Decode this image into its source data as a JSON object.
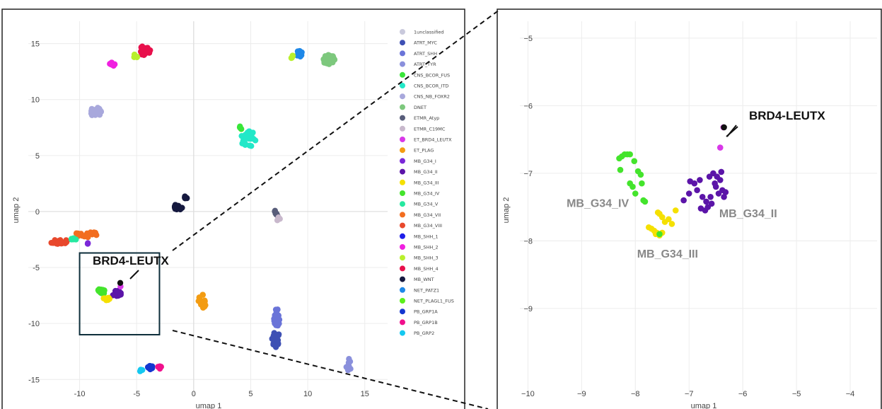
{
  "chart_data": [
    {
      "type": "scatter",
      "panel": "overview",
      "xlabel": "umap 1",
      "ylabel": "umap 2",
      "xlim": [
        -14.5,
        17
      ],
      "ylim": [
        -16.5,
        17
      ],
      "xticks": [
        -10,
        -5,
        0,
        5,
        10,
        15
      ],
      "yticks": [
        -15,
        -10,
        -5,
        0,
        5,
        10,
        15
      ],
      "grid": true,
      "legend_position": "right",
      "callout": "BRD4-LEUTX",
      "zoom_box": {
        "x": [
          -10,
          -3
        ],
        "y": [
          -11,
          -3.7
        ]
      },
      "legend": [
        {
          "label": "1unclassified",
          "color": "#c9c9dc"
        },
        {
          "label": "ATRT_MYC",
          "color": "#3e50b4"
        },
        {
          "label": "ATRT_SHH",
          "color": "#6a74d8"
        },
        {
          "label": "ATRT_TYR",
          "color": "#8a90dc"
        },
        {
          "label": "CNS_BCOR_FUS",
          "color": "#39e639"
        },
        {
          "label": "CNS_BCOR_ITD",
          "color": "#22e8c8"
        },
        {
          "label": "CNS_NB_FOXR2",
          "color": "#a8a8dc"
        },
        {
          "label": "DNET",
          "color": "#7dc87d"
        },
        {
          "label": "ETMR_Atyp",
          "color": "#585d7a"
        },
        {
          "label": "ETMR_C19MC",
          "color": "#c8b8cc"
        },
        {
          "label": "ET_BRD4_LEUTX",
          "color": "#d838e8"
        },
        {
          "label": "ET_PLAG",
          "color": "#f39c12"
        },
        {
          "label": "MB_G34_I",
          "color": "#7a28d8"
        },
        {
          "label": "MB_G34_II",
          "color": "#5b14a8"
        },
        {
          "label": "MB_G34_III",
          "color": "#f5e000"
        },
        {
          "label": "MB_G34_IV",
          "color": "#44e42c"
        },
        {
          "label": "MB_G34_V",
          "color": "#26e8a0"
        },
        {
          "label": "MB_G34_VII",
          "color": "#f26d1f"
        },
        {
          "label": "MB_G34_VIII",
          "color": "#e8482c"
        },
        {
          "label": "MB_SHH_1",
          "color": "#1e1ee8"
        },
        {
          "label": "MB_SHH_2",
          "color": "#f020e0"
        },
        {
          "label": "MB_SHH_3",
          "color": "#b8f02c"
        },
        {
          "label": "MB_SHH_4",
          "color": "#e8104c"
        },
        {
          "label": "MB_WNT",
          "color": "#15193f"
        },
        {
          "label": "NET_PATZ1",
          "color": "#1e88e8"
        },
        {
          "label": "NET_PLAGL1_FUS",
          "color": "#5cf01c"
        },
        {
          "label": "PB_GRP1A",
          "color": "#1436d0"
        },
        {
          "label": "PB_GRP1B",
          "color": "#f0108c"
        },
        {
          "label": "PB_GRP2",
          "color": "#14c8f0"
        }
      ],
      "clusters": [
        {
          "color": "#e8104c",
          "x": -4.3,
          "y": 14.4,
          "rx": 0.5,
          "ry": 0.45,
          "n": 30
        },
        {
          "color": "#b8f02c",
          "x": -5.1,
          "y": 13.9,
          "rx": 0.25,
          "ry": 0.2,
          "n": 5
        },
        {
          "color": "#f020e0",
          "x": -7.1,
          "y": 13.2,
          "rx": 0.3,
          "ry": 0.2,
          "n": 6
        },
        {
          "color": "#a8a8dc",
          "x": -8.6,
          "y": 8.9,
          "rx": 0.5,
          "ry": 0.4,
          "n": 24
        },
        {
          "color": "#7dc87d",
          "x": 11.8,
          "y": 13.6,
          "rx": 0.55,
          "ry": 0.45,
          "n": 30
        },
        {
          "color": "#1e88e8",
          "x": 9.2,
          "y": 14.1,
          "rx": 0.35,
          "ry": 0.3,
          "n": 8
        },
        {
          "color": "#b8f02c",
          "x": 8.6,
          "y": 13.9,
          "rx": 0.25,
          "ry": 0.2,
          "n": 4
        },
        {
          "color": "#22e8c8",
          "x": 4.8,
          "y": 6.5,
          "rx": 0.7,
          "ry": 0.7,
          "n": 26
        },
        {
          "color": "#39e639",
          "x": 4.2,
          "y": 7.6,
          "rx": 0.2,
          "ry": 0.25,
          "n": 4
        },
        {
          "color": "#15193f",
          "x": -1.4,
          "y": 0.4,
          "rx": 0.4,
          "ry": 0.25,
          "n": 12
        },
        {
          "color": "#15193f",
          "x": -0.7,
          "y": 1.3,
          "rx": 0.2,
          "ry": 0.2,
          "n": 5
        },
        {
          "color": "#585d7a",
          "x": 7.2,
          "y": -0.2,
          "rx": 0.2,
          "ry": 0.3,
          "n": 6
        },
        {
          "color": "#c8b8cc",
          "x": 7.4,
          "y": -0.6,
          "rx": 0.2,
          "ry": 0.2,
          "n": 4
        },
        {
          "color": "#e8482c",
          "x": -11.8,
          "y": -2.7,
          "rx": 0.9,
          "ry": 0.2,
          "n": 24
        },
        {
          "color": "#f26d1f",
          "x": -9.4,
          "y": -2.0,
          "rx": 1.0,
          "ry": 0.3,
          "n": 20
        },
        {
          "color": "#26e8a0",
          "x": -10.6,
          "y": -2.5,
          "rx": 0.3,
          "ry": 0.15,
          "n": 6
        },
        {
          "color": "#7a28d8",
          "x": -9.3,
          "y": -2.8,
          "rx": 0.15,
          "ry": 0.15,
          "n": 2
        },
        {
          "color": "#f39c12",
          "x": 0.8,
          "y": -8.0,
          "rx": 0.4,
          "ry": 0.6,
          "n": 14
        },
        {
          "color": "#6a74d8",
          "x": 7.3,
          "y": -9.4,
          "rx": 0.3,
          "ry": 0.9,
          "n": 22
        },
        {
          "color": "#3e50b4",
          "x": 7.2,
          "y": -11.4,
          "rx": 0.35,
          "ry": 0.8,
          "n": 22
        },
        {
          "color": "#8a90dc",
          "x": 13.6,
          "y": -13.6,
          "rx": 0.25,
          "ry": 0.6,
          "n": 12
        },
        {
          "color": "#1436d0",
          "x": -3.8,
          "y": -13.8,
          "rx": 0.3,
          "ry": 0.3,
          "n": 8
        },
        {
          "color": "#f0108c",
          "x": -3.0,
          "y": -13.9,
          "rx": 0.2,
          "ry": 0.15,
          "n": 4
        },
        {
          "color": "#14c8f0",
          "x": -4.6,
          "y": -14.2,
          "rx": 0.2,
          "ry": 0.15,
          "n": 3
        },
        {
          "color": "#44e42c",
          "x": -8.1,
          "y": -7.1,
          "rx": 0.3,
          "ry": 0.35,
          "n": 14
        },
        {
          "color": "#5b14a8",
          "x": -6.8,
          "y": -7.3,
          "rx": 0.45,
          "ry": 0.3,
          "n": 18
        },
        {
          "color": "#f5e000",
          "x": -7.6,
          "y": -7.8,
          "rx": 0.3,
          "ry": 0.2,
          "n": 8
        },
        {
          "color": "#d838e8",
          "x": -6.4,
          "y": -6.7,
          "rx": 0.1,
          "ry": 0.1,
          "n": 1
        },
        {
          "color": "#111111",
          "x": -6.35,
          "y": -6.35,
          "rx": 0.1,
          "ry": 0.1,
          "n": 1
        }
      ]
    },
    {
      "type": "scatter",
      "panel": "zoom",
      "xlabel": "umap 1",
      "ylabel": "umap 2",
      "xlim": [
        -10.15,
        -3.5
      ],
      "ylim": [
        -10.3,
        -4.75
      ],
      "xticks": [
        -10,
        -9,
        -8,
        -7,
        -6,
        -5,
        -4
      ],
      "yticks": [
        -5,
        -6,
        -7,
        -8,
        -9
      ],
      "grid": true,
      "callout": "BRD4-LEUTX",
      "group_labels": [
        {
          "text": "MB_G34_IV",
          "x": -8.7,
          "y": -7.5
        },
        {
          "text": "MB_G34_II",
          "x": -5.9,
          "y": -7.65
        },
        {
          "text": "MB_G34_III",
          "x": -7.4,
          "y": -8.25
        }
      ],
      "series": [
        {
          "name": "MB_G34_IV",
          "color": "#44e42c",
          "points": [
            [
              -8.3,
              -6.78
            ],
            [
              -8.25,
              -6.75
            ],
            [
              -8.2,
              -6.72
            ],
            [
              -8.15,
              -6.72
            ],
            [
              -8.1,
              -6.72
            ],
            [
              -8.28,
              -6.95
            ],
            [
              -8.1,
              -7.15
            ],
            [
              -8.05,
              -7.2
            ],
            [
              -8.0,
              -7.3
            ],
            [
              -7.95,
              -6.97
            ],
            [
              -7.9,
              -7.02
            ],
            [
              -7.88,
              -7.15
            ],
            [
              -7.85,
              -7.4
            ],
            [
              -7.82,
              -7.42
            ],
            [
              -8.02,
              -6.82
            ]
          ]
        },
        {
          "name": "MB_G34_III",
          "color": "#f5e000",
          "points": [
            [
              -7.75,
              -7.8
            ],
            [
              -7.7,
              -7.82
            ],
            [
              -7.65,
              -7.85
            ],
            [
              -7.6,
              -7.88
            ],
            [
              -7.55,
              -7.6
            ],
            [
              -7.5,
              -7.65
            ],
            [
              -7.45,
              -7.72
            ],
            [
              -7.38,
              -7.68
            ],
            [
              -7.32,
              -7.75
            ],
            [
              -7.55,
              -7.92
            ],
            [
              -7.5,
              -7.88
            ],
            [
              -7.25,
              -7.55
            ],
            [
              -7.58,
              -7.58
            ],
            [
              -7.62,
              -7.9
            ]
          ]
        },
        {
          "name": "MB_G34_IV",
          "color": "#44e42c",
          "points": [
            [
              -7.55,
              -7.9
            ]
          ]
        },
        {
          "name": "MB_G34_II",
          "color": "#5b14a8",
          "points": [
            [
              -7.1,
              -7.4
            ],
            [
              -7.0,
              -7.3
            ],
            [
              -6.9,
              -7.15
            ],
            [
              -6.85,
              -7.25
            ],
            [
              -6.8,
              -7.1
            ],
            [
              -6.75,
              -7.35
            ],
            [
              -6.7,
              -7.55
            ],
            [
              -6.65,
              -7.5
            ],
            [
              -6.62,
              -7.05
            ],
            [
              -6.58,
              -7.45
            ],
            [
              -6.55,
              -7.0
            ],
            [
              -6.5,
              -7.2
            ],
            [
              -6.45,
              -7.3
            ],
            [
              -6.42,
              -7.1
            ],
            [
              -6.38,
              -7.25
            ],
            [
              -6.35,
              -7.35
            ],
            [
              -6.32,
              -7.28
            ],
            [
              -6.6,
              -7.35
            ],
            [
              -6.68,
              -7.42
            ],
            [
              -6.48,
              -7.05
            ],
            [
              -6.98,
              -7.12
            ],
            [
              -6.78,
              -7.52
            ],
            [
              -6.4,
              -6.98
            ],
            [
              -6.52,
              -7.15
            ]
          ]
        },
        {
          "name": "ET_BRD4_LEUTX",
          "color": "#d838e8",
          "points": [
            [
              -6.42,
              -6.62
            ],
            [
              -6.36,
              -6.32
            ]
          ]
        },
        {
          "name": "BRD4-LEUTX",
          "color": "#111111",
          "points": [
            [
              -6.35,
              -6.32
            ]
          ]
        }
      ]
    }
  ]
}
